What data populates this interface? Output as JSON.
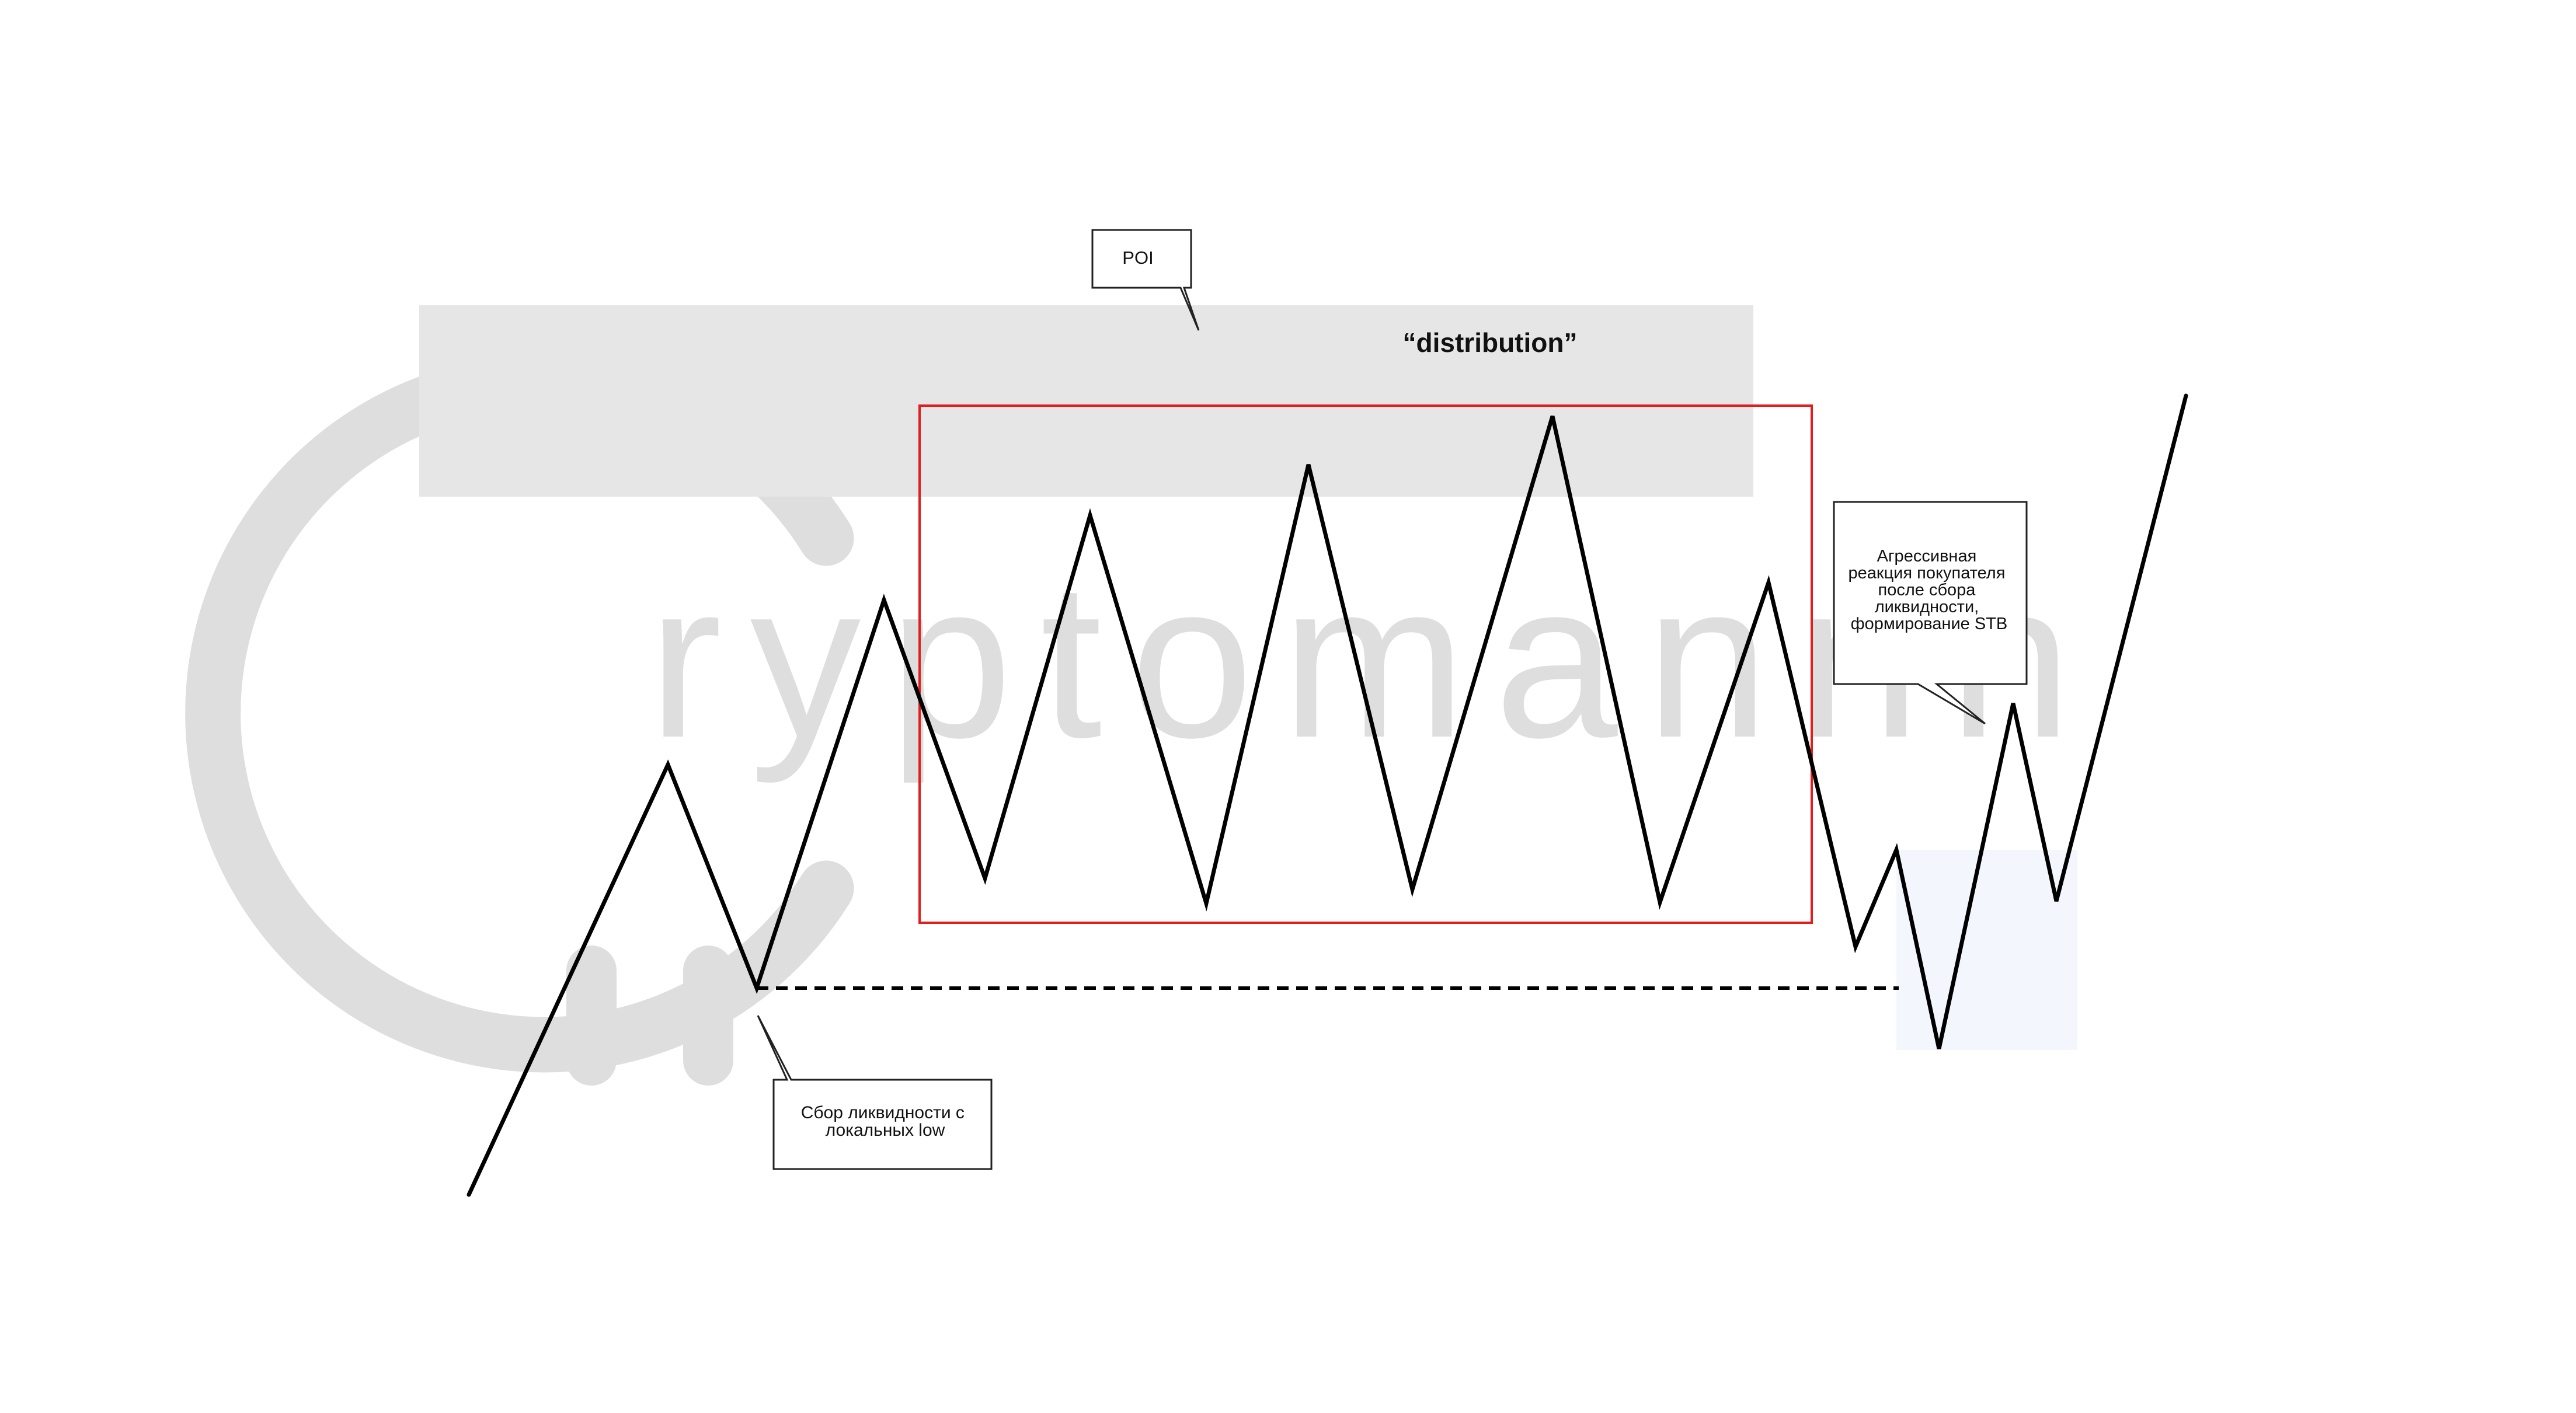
{
  "watermark": {
    "brand_text": "ryptomannn",
    "logo": "cryptomannn-logo",
    "color": "#dedede"
  },
  "zones": {
    "poi_zone_color": "#e6e6e6",
    "range_box_color": "#e01e1e",
    "reaction_zone_color": "#f3f6fd"
  },
  "labels": {
    "distribution": "“distribution”"
  },
  "callouts": {
    "poi": {
      "lines": [
        "POI"
      ]
    },
    "liquidity": {
      "lines": [
        "Сбор ликвидности с",
        "локальных low"
      ]
    },
    "reaction": {
      "lines": [
        "Агрессивная",
        "реакция покупателя",
        "после сбора",
        "ликвидности,",
        "формирование STB"
      ]
    }
  },
  "price_path": {
    "color": "#000000"
  },
  "liquidity_line": {
    "style": "dashed",
    "color": "#000000"
  }
}
